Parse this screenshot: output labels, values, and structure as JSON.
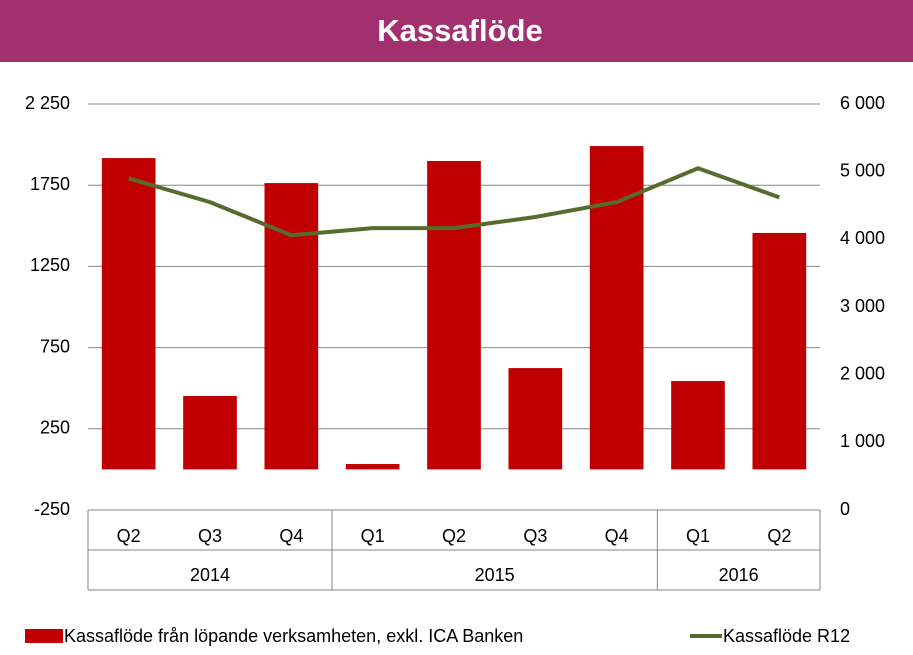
{
  "chart_data": {
    "type": "bar",
    "title": "Kassaflöde",
    "categories": [
      "Q2",
      "Q3",
      "Q4",
      "Q1",
      "Q2",
      "Q3",
      "Q4",
      "Q1",
      "Q2"
    ],
    "years": [
      "2014",
      null,
      null,
      "2015",
      null,
      null,
      null,
      "2016",
      null
    ],
    "series": [
      {
        "name": "Kassaflöde från löpande verksamheten, exkl. ICA Banken",
        "type": "bar",
        "color": "#c00000",
        "values": [
          1917,
          452,
          1763,
          33,
          1899,
          624,
          1991,
          544,
          1456
        ]
      },
      {
        "name": "Kassaflöde R12",
        "type": "line",
        "axis": "y2",
        "color": "#576b2e",
        "values": [
          4900,
          4550,
          4060,
          4165,
          4165,
          4330,
          4550,
          5050,
          4620
        ]
      }
    ],
    "ylim": [
      -250,
      2250
    ],
    "yticks": [
      -250,
      250,
      750,
      1250,
      1750,
      {
        "value": 2250,
        "label": "2 250"
      }
    ],
    "y2lim": [
      0,
      6000
    ],
    "y2ticks": [
      0,
      {
        "value": 1000,
        "label": "1 000"
      },
      {
        "value": 2000,
        "label": "2 000"
      },
      {
        "value": 3000,
        "label": "3 000"
      },
      {
        "value": 4000,
        "label": "4 000"
      },
      {
        "value": 5000,
        "label": "5 000"
      },
      {
        "value": 6000,
        "label": "6 000"
      }
    ],
    "grid": true,
    "legend": "bottom",
    "banner_color": "#a2306f"
  }
}
